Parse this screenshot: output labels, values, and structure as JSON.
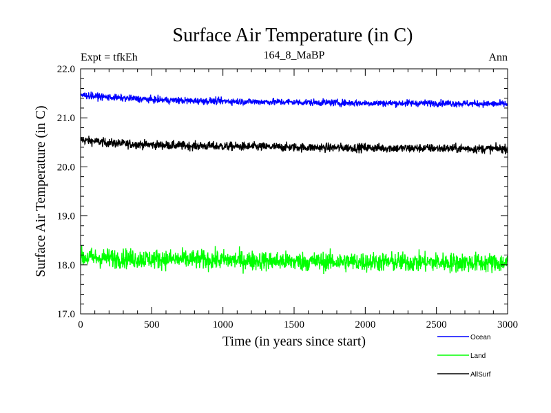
{
  "chart_data": {
    "type": "line",
    "title": "Surface Air Temperature (in C)",
    "subtitle": "164_8_MaBP",
    "left_label": "Expt = tfkEh",
    "right_label": "Ann",
    "xlabel": "Time (in years since start)",
    "ylabel": "Surface Air Temperature (in C)",
    "xlim": [
      0,
      3000
    ],
    "ylim": [
      17.0,
      22.0
    ],
    "x_ticks": [
      0,
      500,
      1000,
      1500,
      2000,
      2500,
      3000
    ],
    "y_ticks": [
      "17.0",
      "18.0",
      "19.0",
      "20.0",
      "21.0",
      "22.0"
    ],
    "grid": false,
    "legend_position": "bottom-right",
    "series": [
      {
        "name": "Ocean",
        "color": "#0000ff",
        "x": [
          0,
          100,
          200,
          300,
          400,
          500,
          750,
          1000,
          1250,
          1500,
          1750,
          2000,
          2250,
          2500,
          2750,
          3000
        ],
        "values": [
          21.47,
          21.44,
          21.42,
          21.4,
          21.39,
          21.37,
          21.35,
          21.34,
          21.33,
          21.32,
          21.31,
          21.3,
          21.3,
          21.3,
          21.29,
          21.28
        ],
        "noise": 0.07
      },
      {
        "name": "Land",
        "color": "#00ff00",
        "x": [
          0,
          500,
          1000,
          1500,
          2000,
          2500,
          3000
        ],
        "values": [
          18.15,
          18.12,
          18.1,
          18.07,
          18.06,
          18.05,
          18.04
        ],
        "noise": 0.2
      },
      {
        "name": "AllSurf",
        "color": "#000000",
        "x": [
          0,
          100,
          200,
          300,
          400,
          500,
          750,
          1000,
          1250,
          1500,
          1750,
          2000,
          2250,
          2500,
          2750,
          3000
        ],
        "values": [
          20.55,
          20.52,
          20.49,
          20.47,
          20.46,
          20.45,
          20.43,
          20.42,
          20.41,
          20.4,
          20.39,
          20.39,
          20.38,
          20.38,
          20.37,
          20.37
        ],
        "noise": 0.09
      }
    ]
  }
}
